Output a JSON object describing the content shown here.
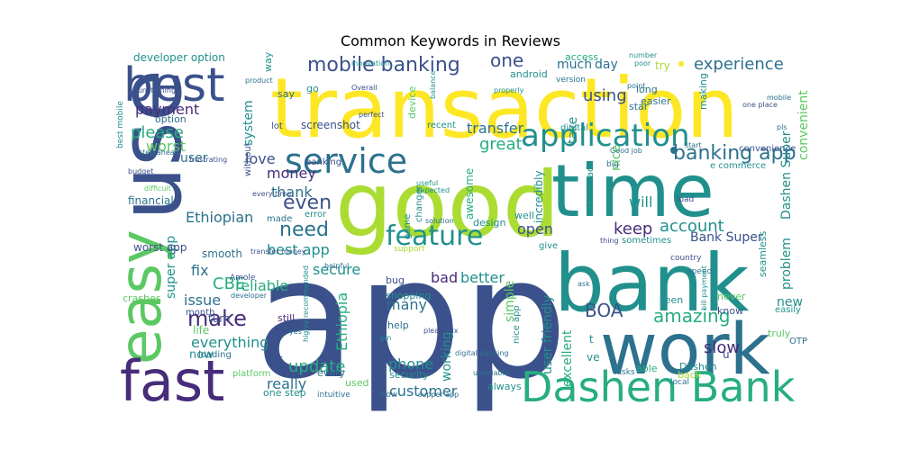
{
  "chart_data": {
    "type": "wordcloud",
    "title": "Common Keywords in Reviews",
    "words": [
      {
        "text": "app",
        "weight": 100
      },
      {
        "text": "transaction",
        "weight": 62
      },
      {
        "text": "good",
        "weight": 58
      },
      {
        "text": "use",
        "weight": 52
      },
      {
        "text": "time",
        "weight": 46
      },
      {
        "text": "bank",
        "weight": 46
      },
      {
        "text": "work",
        "weight": 40
      },
      {
        "text": "easy",
        "weight": 36
      },
      {
        "text": "fast",
        "weight": 32
      },
      {
        "text": "Dashen Bank",
        "weight": 26
      },
      {
        "text": "best",
        "weight": 28
      },
      {
        "text": "service",
        "weight": 21
      },
      {
        "text": "application",
        "weight": 17
      },
      {
        "text": "feature",
        "weight": 15
      },
      {
        "text": "mobile banking",
        "weight": 12
      },
      {
        "text": "banking app",
        "weight": 10
      },
      {
        "text": "experience",
        "weight": 10
      },
      {
        "text": "make",
        "weight": 10
      },
      {
        "text": "update",
        "weight": 9
      },
      {
        "text": "amazing",
        "weight": 9
      },
      {
        "text": "customer",
        "weight": 7
      },
      {
        "text": "account",
        "weight": 8
      },
      {
        "text": "need",
        "weight": 9
      },
      {
        "text": "even",
        "weight": 8
      },
      {
        "text": "money",
        "weight": 7
      },
      {
        "text": "BOA",
        "weight": 8
      },
      {
        "text": "great",
        "weight": 8
      },
      {
        "text": "transfer",
        "weight": 7
      },
      {
        "text": "Ethiopian",
        "weight": 7
      },
      {
        "text": "best app",
        "weight": 7
      },
      {
        "text": "CBE",
        "weight": 7
      },
      {
        "text": "issue",
        "weight": 7
      },
      {
        "text": "reliable",
        "weight": 7
      },
      {
        "text": "love",
        "weight": 7
      },
      {
        "text": "payment",
        "weight": 7
      },
      {
        "text": "please",
        "weight": 8
      },
      {
        "text": "worst",
        "weight": 7
      },
      {
        "text": "one",
        "weight": 8
      },
      {
        "text": "using",
        "weight": 7
      },
      {
        "text": "keep",
        "weight": 7
      },
      {
        "text": "fix",
        "weight": 7
      },
      {
        "text": "secure",
        "weight": 7
      },
      {
        "text": "bad",
        "weight": 7
      },
      {
        "text": "better",
        "weight": 7
      },
      {
        "text": "open",
        "weight": 7
      },
      {
        "text": "slow",
        "weight": 8
      },
      {
        "text": "thank",
        "weight": 7
      },
      {
        "text": "everything",
        "weight": 7
      },
      {
        "text": "really",
        "weight": 7
      },
      {
        "text": "phone",
        "weight": 7
      },
      {
        "text": "many",
        "weight": 7
      },
      {
        "text": "excellent",
        "weight": 6
      },
      {
        "text": "user",
        "weight": 6
      },
      {
        "text": "system",
        "weight": 6
      },
      {
        "text": "much",
        "weight": 6
      },
      {
        "text": "day",
        "weight": 6
      },
      {
        "text": "take",
        "weight": 6
      },
      {
        "text": "nice",
        "weight": 6
      },
      {
        "text": "will",
        "weight": 6
      },
      {
        "text": "new",
        "weight": 6
      },
      {
        "text": "Ethiopia",
        "weight": 6
      },
      {
        "text": "working",
        "weight": 6
      },
      {
        "text": "super app",
        "weight": 6
      },
      {
        "text": "simple",
        "weight": 5
      },
      {
        "text": "user friendly",
        "weight": 5
      },
      {
        "text": "problem",
        "weight": 5
      },
      {
        "text": "Dashen Super",
        "weight": 5
      },
      {
        "text": "convenient",
        "weight": 5
      },
      {
        "text": "incredibly",
        "weight": 5
      },
      {
        "text": "awesome",
        "weight": 5
      },
      {
        "text": "screenshot",
        "weight": 5
      },
      {
        "text": "developer option",
        "weight": 5
      },
      {
        "text": "Bank Super",
        "weight": 5
      },
      {
        "text": "worst app",
        "weight": 5
      },
      {
        "text": "smooth",
        "weight": 5
      },
      {
        "text": "financial",
        "weight": 5
      },
      {
        "text": "now",
        "weight": 5
      },
      {
        "text": "life",
        "weight": 5
      },
      {
        "text": "turn",
        "weight": 5
      },
      {
        "text": "crashes",
        "weight": 4
      },
      {
        "text": "seamless",
        "weight": 4
      },
      {
        "text": "truly",
        "weight": 4
      },
      {
        "text": "know",
        "weight": 4
      },
      {
        "text": "never",
        "weight": 4
      },
      {
        "text": "seen",
        "weight": 4
      },
      {
        "text": "able",
        "weight": 4
      },
      {
        "text": "back",
        "weight": 4
      },
      {
        "text": "Dashen",
        "weight": 4
      },
      {
        "text": "long",
        "weight": 4
      },
      {
        "text": "easier",
        "weight": 4
      },
      {
        "text": "star",
        "weight": 4
      },
      {
        "text": "making",
        "weight": 4
      },
      {
        "text": "try",
        "weight": 4
      },
      {
        "text": "access",
        "weight": 4
      },
      {
        "text": "android",
        "weight": 4
      },
      {
        "text": "device",
        "weight": 4
      },
      {
        "text": "recent",
        "weight": 4
      },
      {
        "text": "digital",
        "weight": 4
      },
      {
        "text": "download",
        "weight": 4
      },
      {
        "text": "sometimes",
        "weight": 4
      },
      {
        "text": "give",
        "weight": 4
      },
      {
        "text": "well",
        "weight": 4
      },
      {
        "text": "design",
        "weight": 4
      },
      {
        "text": "changer",
        "weight": 4
      },
      {
        "text": "game",
        "weight": 4
      },
      {
        "text": "security",
        "weight": 4
      },
      {
        "text": "used",
        "weight": 4
      },
      {
        "text": "every",
        "weight": 4
      },
      {
        "text": "made",
        "weight": 4
      },
      {
        "text": "without",
        "weight": 4
      },
      {
        "text": "say",
        "weight": 4
      },
      {
        "text": "way",
        "weight": 4
      },
      {
        "text": "go",
        "weight": 4
      },
      {
        "text": "lot",
        "weight": 4
      },
      {
        "text": "option",
        "weight": 4
      },
      {
        "text": "one step",
        "weight": 4
      },
      {
        "text": "always",
        "weight": 4
      },
      {
        "text": "bug",
        "weight": 4
      },
      {
        "text": "help",
        "weight": 4
      },
      {
        "text": "shopping",
        "weight": 4
      },
      {
        "text": "still",
        "weight": 4
      },
      {
        "text": "month",
        "weight": 3
      },
      {
        "text": "loading",
        "weight": 3
      },
      {
        "text": "error",
        "weight": 3
      },
      {
        "text": "banking",
        "weight": 3
      },
      {
        "text": "s",
        "weight": 5
      },
      {
        "text": "u",
        "weight": 5
      },
      {
        "text": "t",
        "weight": 4
      },
      {
        "text": "ve",
        "weight": 4
      },
      {
        "text": "e commerce",
        "weight": 3
      },
      {
        "text": "convenience",
        "weight": 3
      },
      {
        "text": "OTP",
        "weight": 3
      },
      {
        "text": "easily",
        "weight": 3
      },
      {
        "text": "speed",
        "weight": 3
      },
      {
        "text": "country",
        "weight": 3
      },
      {
        "text": "load",
        "weight": 3
      },
      {
        "text": "tasks",
        "weight": 3
      },
      {
        "text": "local",
        "weight": 3
      },
      {
        "text": "nice app",
        "weight": 3
      },
      {
        "text": "platform",
        "weight": 3
      },
      {
        "text": "intuitive",
        "weight": 3
      },
      {
        "text": "Amole",
        "weight": 3
      },
      {
        "text": "budget",
        "weight": 3
      },
      {
        "text": "best mobile",
        "weight": 3
      },
      {
        "text": "functioning",
        "weight": 3
      },
      {
        "text": "step ahead",
        "weight": 3
      },
      {
        "text": "frustrating",
        "weight": 3
      },
      {
        "text": "difficult",
        "weight": 3
      },
      {
        "text": "every time",
        "weight": 3
      },
      {
        "text": "transfer money",
        "weight": 3
      },
      {
        "text": "helpful",
        "weight": 3
      },
      {
        "text": "developer",
        "weight": 3
      },
      {
        "text": "Overall",
        "weight": 3
      },
      {
        "text": "product",
        "weight": 3
      },
      {
        "text": "innovation",
        "weight": 3
      },
      {
        "text": "balance",
        "weight": 3
      },
      {
        "text": "properly",
        "weight": 3
      },
      {
        "text": "perfect",
        "weight": 3
      },
      {
        "text": "version",
        "weight": 3
      },
      {
        "text": "number",
        "weight": 3
      },
      {
        "text": "poor",
        "weight": 3
      },
      {
        "text": "point",
        "weight": 3
      },
      {
        "text": "one place",
        "weight": 3
      },
      {
        "text": "mobile",
        "weight": 3
      },
      {
        "text": "pls",
        "weight": 3
      },
      {
        "text": "start",
        "weight": 3
      },
      {
        "text": "Good job",
        "weight": 3
      },
      {
        "text": "big",
        "weight": 3
      },
      {
        "text": "useful",
        "weight": 3
      },
      {
        "text": "expected",
        "weight": 3
      },
      {
        "text": "solution",
        "weight": 3
      },
      {
        "text": "support",
        "weight": 3
      },
      {
        "text": "please fix",
        "weight": 3
      },
      {
        "text": "digital banking",
        "weight": 3
      },
      {
        "text": "unreliable",
        "weight": 3
      },
      {
        "text": "supper app",
        "weight": 3
      },
      {
        "text": "wow",
        "weight": 3
      },
      {
        "text": "yes",
        "weight": 3
      },
      {
        "text": "thing",
        "weight": 3
      },
      {
        "text": "bill payment",
        "weight": 3
      },
      {
        "text": "ask",
        "weight": 3
      },
      {
        "text": "highly recommended",
        "weight": 3
      },
      {
        "text": "pin",
        "weight": 3
      }
    ]
  }
}
